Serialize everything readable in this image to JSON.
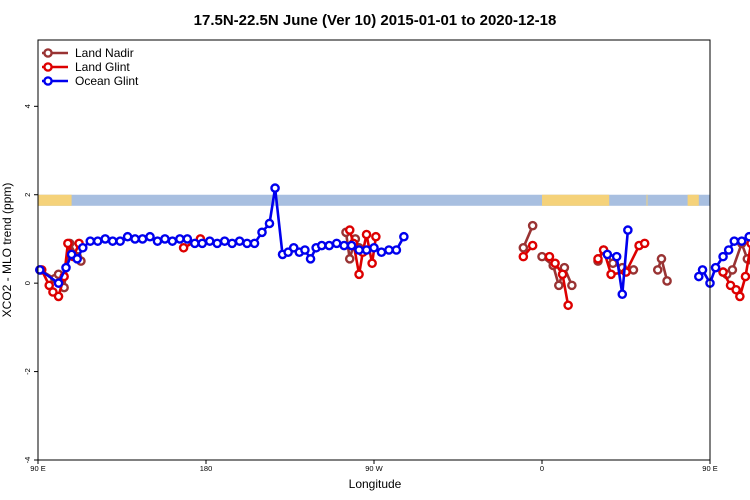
{
  "chart_data": {
    "type": "line",
    "title": "17.5N-22.5N June (Ver 10)   2015-01-01 to 2020-12-18",
    "xlabel": "Longitude",
    "ylabel": "XCO2 - MLO trend (ppm)",
    "xlim": [
      90,
      450
    ],
    "ylim": [
      -4,
      5.5
    ],
    "x_ticks": [
      {
        "value": 90,
        "label": "90 E"
      },
      {
        "value": 180,
        "label": "180"
      },
      {
        "value": 270,
        "label": "90 W"
      },
      {
        "value": 360,
        "label": "0"
      },
      {
        "value": 450,
        "label": "90 E"
      },
      {
        "value": 540,
        "label": "180"
      }
    ],
    "y_ticks": [
      {
        "value": -4,
        "label": "-4"
      },
      {
        "value": -2,
        "label": "-2"
      },
      {
        "value": 0,
        "label": "0"
      },
      {
        "value": 2,
        "label": "2"
      },
      {
        "value": 4,
        "label": "4"
      }
    ],
    "land_mask_band": {
      "y_range": [
        1.75,
        2.0
      ],
      "ocean_color": "#a8bfe0",
      "land_color": "#f5d27a",
      "land_segments": [
        [
          90,
          108
        ],
        [
          360,
          396
        ],
        [
          416,
          416.5
        ],
        [
          438,
          444
        ]
      ]
    },
    "legend_position": "top-left",
    "series": [
      {
        "name": "Land Nadir",
        "color": "#993333",
        "segments": [
          [
            [
              91,
              0.3
            ],
            [
              99,
              0.1
            ],
            [
              101,
              0.2
            ],
            [
              104,
              -0.1
            ],
            [
              107,
              0.9
            ],
            [
              111,
              0.6
            ],
            [
              113,
              0.5
            ]
          ],
          [
            [
              255,
              1.15
            ],
            [
              257,
              0.55
            ],
            [
              260,
              1.0
            ],
            [
              262,
              0.8
            ]
          ],
          [
            [
              350,
              0.8
            ],
            [
              355,
              1.3
            ]
          ],
          [
            [
              360,
              0.6
            ],
            [
              366,
              0.4
            ],
            [
              369,
              -0.05
            ],
            [
              372,
              0.35
            ],
            [
              376,
              -0.05
            ]
          ],
          [
            [
              390,
              0.5
            ],
            [
              393,
              0.75
            ],
            [
              398,
              0.45
            ],
            [
              403,
              0.35
            ],
            [
              409,
              0.3
            ]
          ],
          [
            [
              422,
              0.3
            ],
            [
              424,
              0.55
            ],
            [
              427,
              0.05
            ]
          ],
          [
            [
              457,
              0.25
            ],
            [
              459,
              0.2
            ],
            [
              462,
              0.3
            ],
            [
              467,
              0.9
            ],
            [
              470,
              0.55
            ],
            [
              473,
              0.5
            ]
          ]
        ]
      },
      {
        "name": "Land Glint",
        "color": "#dd0000",
        "segments": [
          [
            [
              92,
              0.3
            ],
            [
              96,
              -0.05
            ],
            [
              98,
              -0.2
            ],
            [
              101,
              -0.3
            ],
            [
              104,
              0.15
            ],
            [
              106,
              0.9
            ],
            [
              109,
              0.6
            ],
            [
              112,
              0.9
            ]
          ],
          [
            [
              168,
              0.8
            ],
            [
              177,
              1.0
            ]
          ],
          [
            [
              257,
              1.2
            ],
            [
              259,
              0.9
            ],
            [
              262,
              0.2
            ],
            [
              264,
              0.7
            ],
            [
              266,
              1.1
            ],
            [
              269,
              0.45
            ],
            [
              271,
              1.05
            ]
          ],
          [
            [
              350,
              0.6
            ],
            [
              355,
              0.85
            ]
          ],
          [
            [
              364,
              0.6
            ],
            [
              367,
              0.45
            ],
            [
              371,
              0.2
            ],
            [
              374,
              -0.5
            ]
          ],
          [
            [
              390,
              0.55
            ],
            [
              393,
              0.75
            ],
            [
              397,
              0.2
            ],
            [
              405,
              0.25
            ],
            [
              412,
              0.85
            ],
            [
              415,
              0.9
            ]
          ],
          [
            [
              457,
              0.25
            ],
            [
              461,
              -0.05
            ],
            [
              464,
              -0.15
            ],
            [
              466,
              -0.3
            ],
            [
              469,
              0.15
            ],
            [
              472,
              0.9
            ],
            [
              475,
              0.9
            ]
          ]
        ]
      },
      {
        "name": "Ocean Glint",
        "color": "#0000ee",
        "segments": [
          [
            [
              91,
              0.3
            ],
            [
              101,
              0.0
            ],
            [
              105,
              0.35
            ],
            [
              108,
              0.65
            ],
            [
              111,
              0.55
            ],
            [
              114,
              0.8
            ],
            [
              118,
              0.95
            ],
            [
              122,
              0.95
            ],
            [
              126,
              1.0
            ],
            [
              130,
              0.95
            ],
            [
              134,
              0.95
            ],
            [
              138,
              1.05
            ],
            [
              142,
              1.0
            ],
            [
              146,
              1.0
            ],
            [
              150,
              1.05
            ],
            [
              154,
              0.95
            ],
            [
              158,
              1.0
            ],
            [
              162,
              0.95
            ],
            [
              166,
              1.0
            ],
            [
              170,
              1.0
            ],
            [
              174,
              0.9
            ],
            [
              178,
              0.9
            ],
            [
              182,
              0.95
            ],
            [
              186,
              0.9
            ],
            [
              190,
              0.95
            ],
            [
              194,
              0.9
            ],
            [
              198,
              0.95
            ],
            [
              202,
              0.9
            ],
            [
              206,
              0.9
            ],
            [
              210,
              1.15
            ],
            [
              214,
              1.35
            ],
            [
              217,
              2.15
            ],
            [
              221,
              0.65
            ],
            [
              224,
              0.7
            ],
            [
              227,
              0.8
            ],
            [
              230,
              0.7
            ],
            [
              233,
              0.75
            ],
            [
              236,
              0.55
            ],
            [
              239,
              0.8
            ],
            [
              242,
              0.85
            ],
            [
              246,
              0.85
            ],
            [
              250,
              0.9
            ],
            [
              254,
              0.85
            ],
            [
              258,
              0.85
            ],
            [
              262,
              0.75
            ],
            [
              266,
              0.75
            ],
            [
              270,
              0.8
            ],
            [
              274,
              0.7
            ],
            [
              278,
              0.75
            ],
            [
              282,
              0.75
            ],
            [
              286,
              1.05
            ]
          ],
          [
            [
              395,
              0.65
            ],
            [
              400,
              0.6
            ],
            [
              403,
              -0.25
            ],
            [
              406,
              1.2
            ]
          ],
          [
            [
              444,
              0.15
            ],
            [
              446,
              0.3
            ],
            [
              450,
              0.0
            ],
            [
              453,
              0.35
            ],
            [
              457,
              0.6
            ],
            [
              460,
              0.75
            ],
            [
              463,
              0.95
            ],
            [
              467,
              0.95
            ],
            [
              471,
              1.05
            ],
            [
              475,
              0.95
            ],
            [
              478,
              0.95
            ],
            [
              482,
              1.05
            ],
            [
              486,
              1.05
            ],
            [
              490,
              1.05
            ],
            [
              494,
              0.95
            ]
          ]
        ]
      }
    ]
  }
}
